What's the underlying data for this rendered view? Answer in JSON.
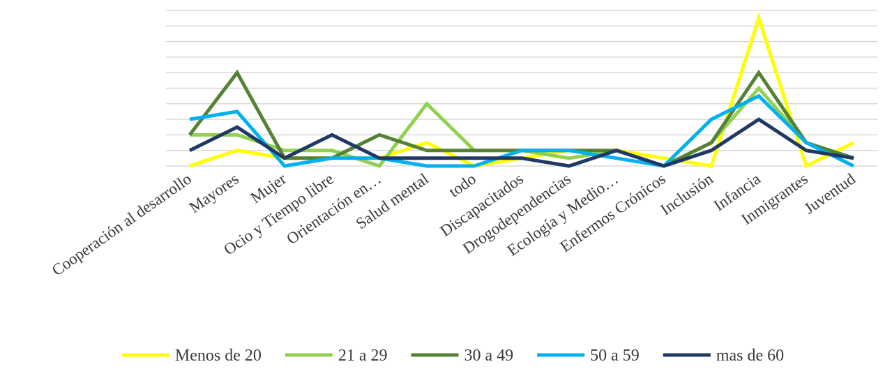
{
  "chart_data": {
    "type": "line",
    "title": "",
    "xlabel": "",
    "ylabel": "",
    "ylim": [
      0,
      10
    ],
    "grid": true,
    "legend_position": "bottom",
    "categories": [
      "Cooperación al desarrollo",
      "Mayores",
      "Mujer",
      "Ocio y Tiempo libre",
      "Orientación en…",
      "Salud mental",
      "todo",
      "Discapacitados",
      "Drogodependencias",
      "Ecología y Medio…",
      "Enfermos Crónicos",
      "Inclusión",
      "Infancia",
      "Inmigrantes",
      "Juventud"
    ],
    "series": [
      {
        "name": "Menos de 20",
        "color": "#ffff00",
        "values": [
          0,
          1,
          0.5,
          0.5,
          0.5,
          1.5,
          0,
          0.5,
          1,
          1,
          0.5,
          0,
          9.5,
          0,
          1.5
        ]
      },
      {
        "name": "21 a 29",
        "color": "#92d050",
        "values": [
          2,
          2,
          1,
          1,
          0,
          4,
          1,
          1,
          0.5,
          1,
          0,
          1.5,
          5,
          1.5,
          0.5
        ]
      },
      {
        "name": "30 a 49",
        "color": "#548235",
        "values": [
          2,
          6,
          0.5,
          0.5,
          2,
          1,
          1,
          1,
          1,
          1,
          0,
          1.5,
          6,
          1.5,
          0.5
        ]
      },
      {
        "name": "50 a 59",
        "color": "#00b0f0",
        "values": [
          3,
          3.5,
          0,
          0.5,
          0.5,
          0,
          0,
          1,
          1,
          0.5,
          0,
          3,
          4.5,
          1.5,
          0
        ]
      },
      {
        "name": "mas de 60",
        "color": "#203864",
        "values": [
          1,
          2.5,
          0.5,
          2,
          0.5,
          0.5,
          0.5,
          0.5,
          0,
          1,
          0,
          1,
          3,
          1,
          0.5
        ]
      }
    ]
  }
}
